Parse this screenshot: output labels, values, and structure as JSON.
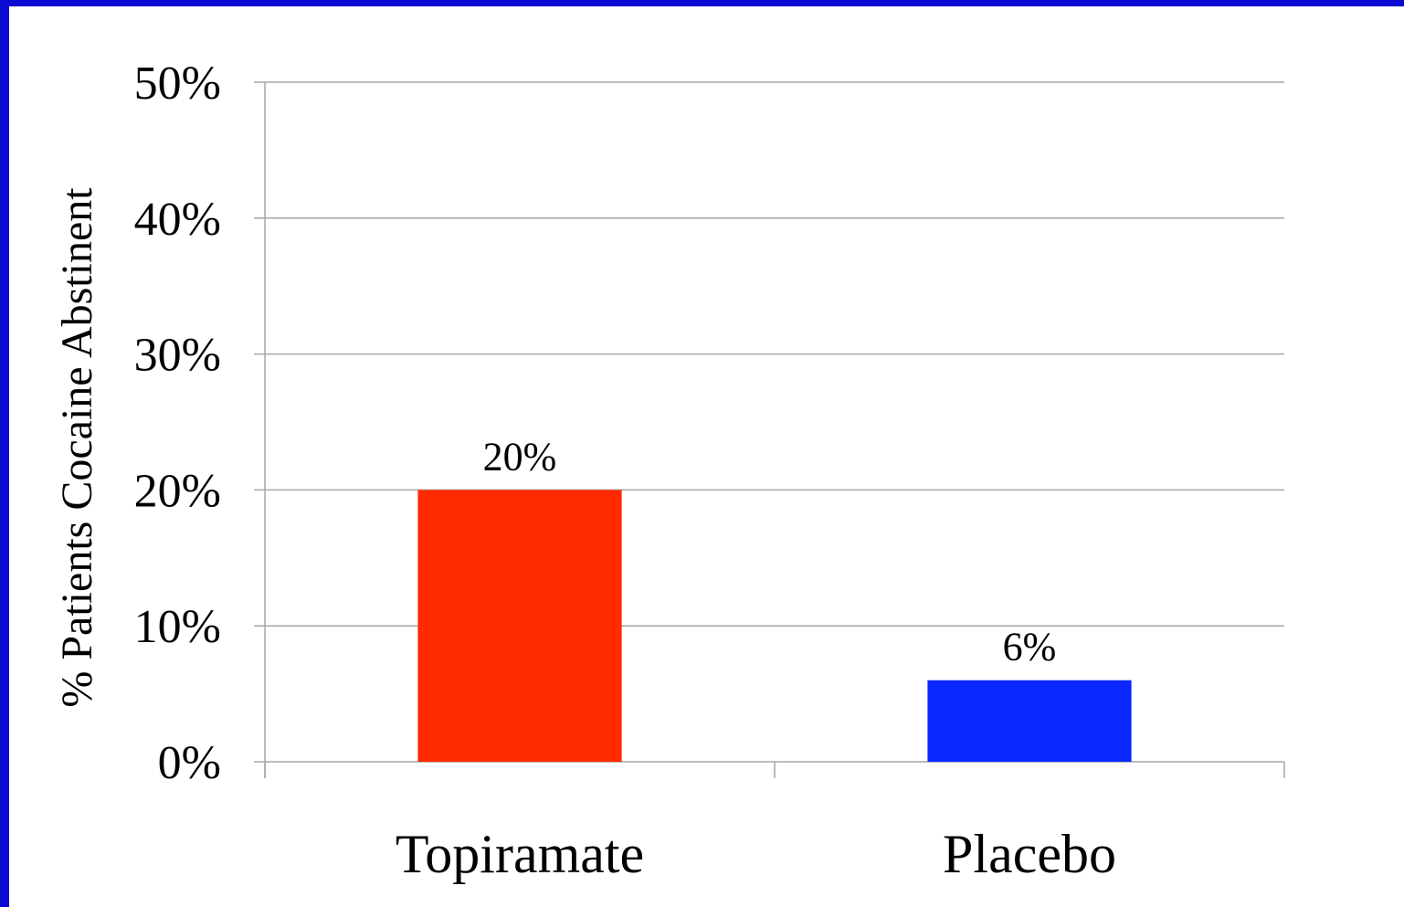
{
  "chart_data": {
    "type": "bar",
    "categories": [
      "Topiramate",
      "Placebo"
    ],
    "values": [
      20,
      6
    ],
    "data_labels": [
      "20%",
      "6%"
    ],
    "bar_colors": [
      "#ff2a00",
      "#0a28ff"
    ],
    "title": "",
    "xlabel": "",
    "ylabel": "% Patients Cocaine Abstinent",
    "ylim": [
      0,
      50
    ],
    "yticks": [
      0,
      10,
      20,
      30,
      40,
      50
    ],
    "ytick_labels": [
      "0%",
      "10%",
      "20%",
      "30%",
      "40%",
      "50%"
    ],
    "grid": true,
    "legend": "none"
  },
  "colors": {
    "frame": "#0a0ad2",
    "background": "#ffffff",
    "gridline": "#a6a6a6"
  }
}
